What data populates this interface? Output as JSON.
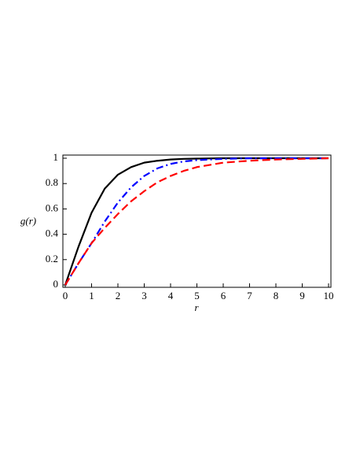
{
  "chart_data": {
    "type": "line",
    "xlabel": "r",
    "ylabel": "g(r)",
    "x": [
      0,
      0.5,
      1,
      1.5,
      2,
      2.5,
      3,
      3.5,
      4,
      4.5,
      5,
      6,
      7,
      8,
      9,
      10
    ],
    "series": [
      {
        "color": "#000000",
        "dash": "solid",
        "values": [
          0,
          0.3,
          0.57,
          0.76,
          0.87,
          0.93,
          0.965,
          0.98,
          0.99,
          0.995,
          0.997,
          1,
          1,
          1,
          1,
          1
        ]
      },
      {
        "color": "#0000ff",
        "dash": "dashdot",
        "values": [
          0,
          0.17,
          0.33,
          0.5,
          0.65,
          0.77,
          0.86,
          0.92,
          0.955,
          0.975,
          0.985,
          0.995,
          1,
          1,
          1,
          1
        ]
      },
      {
        "color": "#ff0000",
        "dash": "dashed",
        "values": [
          0,
          0.17,
          0.33,
          0.45,
          0.56,
          0.66,
          0.74,
          0.81,
          0.86,
          0.9,
          0.93,
          0.965,
          0.98,
          0.99,
          0.995,
          1
        ]
      }
    ],
    "xlim": [
      0,
      10
    ],
    "xticks": [
      0,
      1,
      2,
      3,
      4,
      5,
      6,
      7,
      8,
      9,
      10
    ],
    "ylim": [
      0,
      1
    ],
    "yticks": [
      0,
      0.2,
      0.4,
      0.6,
      0.8,
      1
    ]
  }
}
